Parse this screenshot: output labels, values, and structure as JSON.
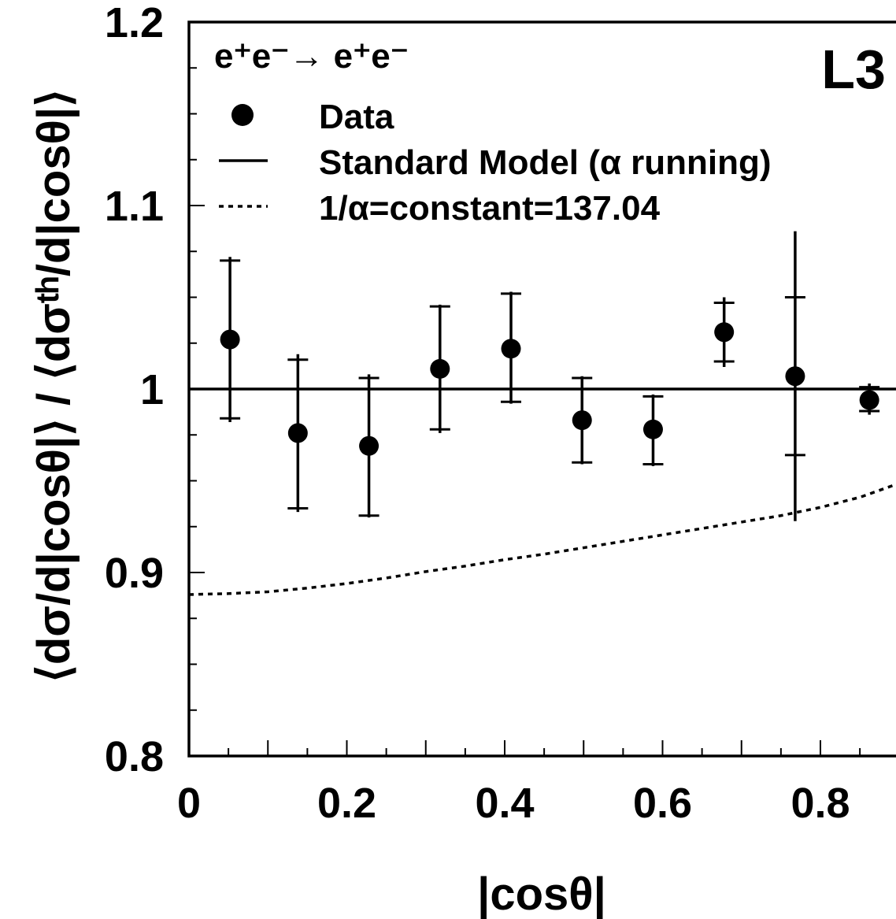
{
  "chart_data": {
    "type": "scatter",
    "experiment_label": "L3",
    "process": "e⁺e⁻→ e⁺e⁻",
    "xlabel": "|cosθ|",
    "ylabel": "⟨dσ/d|cosθ|⟩ / ⟨dσᵗʰ/d|cosθ|⟩",
    "xlim": [
      0,
      0.9
    ],
    "ylim": [
      0.8,
      1.2
    ],
    "x_ticks": [
      {
        "value": 0,
        "label": "0"
      },
      {
        "value": 0.2,
        "label": "0.2"
      },
      {
        "value": 0.4,
        "label": "0.4"
      },
      {
        "value": 0.6,
        "label": "0.6"
      },
      {
        "value": 0.8,
        "label": "0.8"
      }
    ],
    "y_ticks": [
      {
        "value": 0.8,
        "label": "0.8"
      },
      {
        "value": 0.9,
        "label": "0.9"
      },
      {
        "value": 1.0,
        "label": "1"
      },
      {
        "value": 1.1,
        "label": "1.1"
      },
      {
        "value": 1.2,
        "label": "1.2"
      }
    ],
    "legend": [
      {
        "key": "data",
        "marker": "circle",
        "label": "Data"
      },
      {
        "key": "sm",
        "marker": "solid-line",
        "label": "Standard Model (α running)"
      },
      {
        "key": "const",
        "marker": "dotted-line",
        "label": "1/α=constant=137.04"
      }
    ],
    "series": [
      {
        "name": "Data",
        "points": [
          {
            "x": 0.052,
            "y": 1.027,
            "err_total": [
              0.982,
              1.072
            ],
            "err_stat": [
              0.984,
              1.07
            ]
          },
          {
            "x": 0.138,
            "y": 0.976,
            "err_total": [
              0.933,
              1.019
            ],
            "err_stat": [
              0.935,
              1.016
            ]
          },
          {
            "x": 0.228,
            "y": 0.969,
            "err_total": [
              0.93,
              1.008
            ],
            "err_stat": [
              0.931,
              1.006
            ]
          },
          {
            "x": 0.318,
            "y": 1.011,
            "err_total": [
              0.976,
              1.046
            ],
            "err_stat": [
              0.978,
              1.045
            ]
          },
          {
            "x": 0.408,
            "y": 1.022,
            "err_total": [
              0.992,
              1.053
            ],
            "err_stat": [
              0.993,
              1.052
            ]
          },
          {
            "x": 0.498,
            "y": 0.983,
            "err_total": [
              0.959,
              1.007
            ],
            "err_stat": [
              0.96,
              1.006
            ]
          },
          {
            "x": 0.588,
            "y": 0.978,
            "err_total": [
              0.958,
              0.997
            ],
            "err_stat": [
              0.959,
              0.996
            ]
          },
          {
            "x": 0.678,
            "y": 1.031,
            "err_total": [
              1.012,
              1.05
            ],
            "err_stat": [
              1.015,
              1.047
            ]
          },
          {
            "x": 0.768,
            "y": 1.007,
            "err_total": [
              0.928,
              1.086
            ],
            "err_stat": [
              0.964,
              1.05
            ]
          },
          {
            "x": 0.862,
            "y": 0.994,
            "err_total": [
              0.986,
              1.003
            ],
            "err_stat": [
              0.988,
              1.001
            ]
          }
        ]
      },
      {
        "name": "Standard Model (α running)",
        "x": [
          0,
          0.9
        ],
        "y": [
          1.0,
          1.0
        ]
      },
      {
        "name": "1/α=constant=137.04",
        "x": [
          0,
          0.05,
          0.1,
          0.15,
          0.2,
          0.25,
          0.3,
          0.35,
          0.4,
          0.45,
          0.5,
          0.55,
          0.6,
          0.65,
          0.7,
          0.75,
          0.8,
          0.85,
          0.9
        ],
        "y": [
          0.888,
          0.8885,
          0.8895,
          0.8915,
          0.894,
          0.897,
          0.9005,
          0.9035,
          0.907,
          0.91,
          0.9135,
          0.917,
          0.9205,
          0.924,
          0.9275,
          0.931,
          0.9355,
          0.941,
          0.948
        ]
      }
    ]
  }
}
